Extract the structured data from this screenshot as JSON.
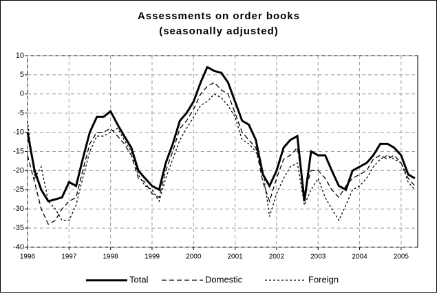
{
  "chart_data": {
    "type": "line",
    "title": "Assessments on order books",
    "subtitle": "(seasonally adjusted)",
    "x": [
      1996,
      1996.17,
      1996.33,
      1996.5,
      1996.67,
      1996.83,
      1997,
      1997.17,
      1997.33,
      1997.5,
      1997.67,
      1997.83,
      1998,
      1998.17,
      1998.33,
      1998.5,
      1998.67,
      1998.83,
      1999,
      1999.17,
      1999.33,
      1999.5,
      1999.67,
      1999.83,
      2000,
      2000.17,
      2000.33,
      2000.5,
      2000.67,
      2000.83,
      2001,
      2001.17,
      2001.33,
      2001.5,
      2001.67,
      2001.83,
      2002,
      2002.17,
      2002.33,
      2002.5,
      2002.67,
      2002.83,
      2003,
      2003.17,
      2003.33,
      2003.5,
      2003.67,
      2003.83,
      2004,
      2004.17,
      2004.33,
      2004.5,
      2004.67,
      2004.83,
      2005,
      2005.17,
      2005.33
    ],
    "series": [
      {
        "name": "Total",
        "color": "#000000",
        "dash": "solid",
        "values": [
          -10,
          -20,
          -25,
          -28,
          -27.5,
          -27,
          -23,
          -24,
          -17,
          -10,
          -6,
          -6,
          -4.5,
          -8,
          -11,
          -14,
          -20,
          -22,
          -24,
          -25,
          -18,
          -13,
          -7,
          -5,
          -2,
          3,
          7,
          6,
          5.5,
          3,
          -2,
          -7,
          -8,
          -12,
          -21,
          -24,
          -20,
          -14,
          -12,
          -11,
          -28,
          -15,
          -16,
          -16,
          -20,
          -24,
          -25,
          -20,
          -19,
          -18,
          -16,
          -13,
          -13,
          -14,
          -16,
          -21,
          -22
        ]
      },
      {
        "name": "Domestic",
        "color": "#000000",
        "dash": "dashed",
        "values": [
          -16,
          -23,
          -30,
          -34,
          -33,
          -30,
          -28,
          -27,
          -20,
          -13,
          -10,
          -10,
          -9,
          -11,
          -13,
          -16,
          -22,
          -23,
          -26,
          -27,
          -20,
          -15,
          -9,
          -7,
          -4,
          0,
          2,
          3,
          1,
          0,
          -5,
          -10,
          -12,
          -14,
          -23,
          -28,
          -22,
          -17,
          -16,
          -14,
          -26,
          -20,
          -20,
          -22,
          -25,
          -27,
          -24,
          -22,
          -21,
          -20,
          -17,
          -16,
          -17,
          -16,
          -18,
          -22,
          -24
        ]
      },
      {
        "name": "Foreign",
        "color": "#000000",
        "dash": "dotted",
        "values": [
          -7,
          -22,
          -19,
          -28,
          -30,
          -33,
          -33,
          -29,
          -22,
          -15,
          -11,
          -11,
          -10,
          -9,
          -12,
          -15,
          -21,
          -24,
          -25,
          -28,
          -22,
          -17,
          -12,
          -9,
          -6,
          -3,
          -2,
          0,
          -1,
          -3,
          -6,
          -12,
          -13,
          -15,
          -20,
          -32,
          -26,
          -22,
          -19,
          -18,
          -29,
          -25,
          -22,
          -27,
          -30,
          -33,
          -29,
          -25,
          -24,
          -22,
          -19,
          -17,
          -16,
          -17,
          -18,
          -23,
          -25
        ]
      }
    ],
    "xlim": [
      1996,
      2005.4
    ],
    "xticks": [
      1996,
      1997,
      1998,
      1999,
      2000,
      2001,
      2002,
      2003,
      2004,
      2005
    ],
    "ylim": [
      -40,
      10
    ],
    "yticks": [
      -40,
      -35,
      -30,
      -25,
      -20,
      -15,
      -10,
      -5,
      0,
      5,
      10
    ],
    "grid": true,
    "legend": "bottom"
  }
}
